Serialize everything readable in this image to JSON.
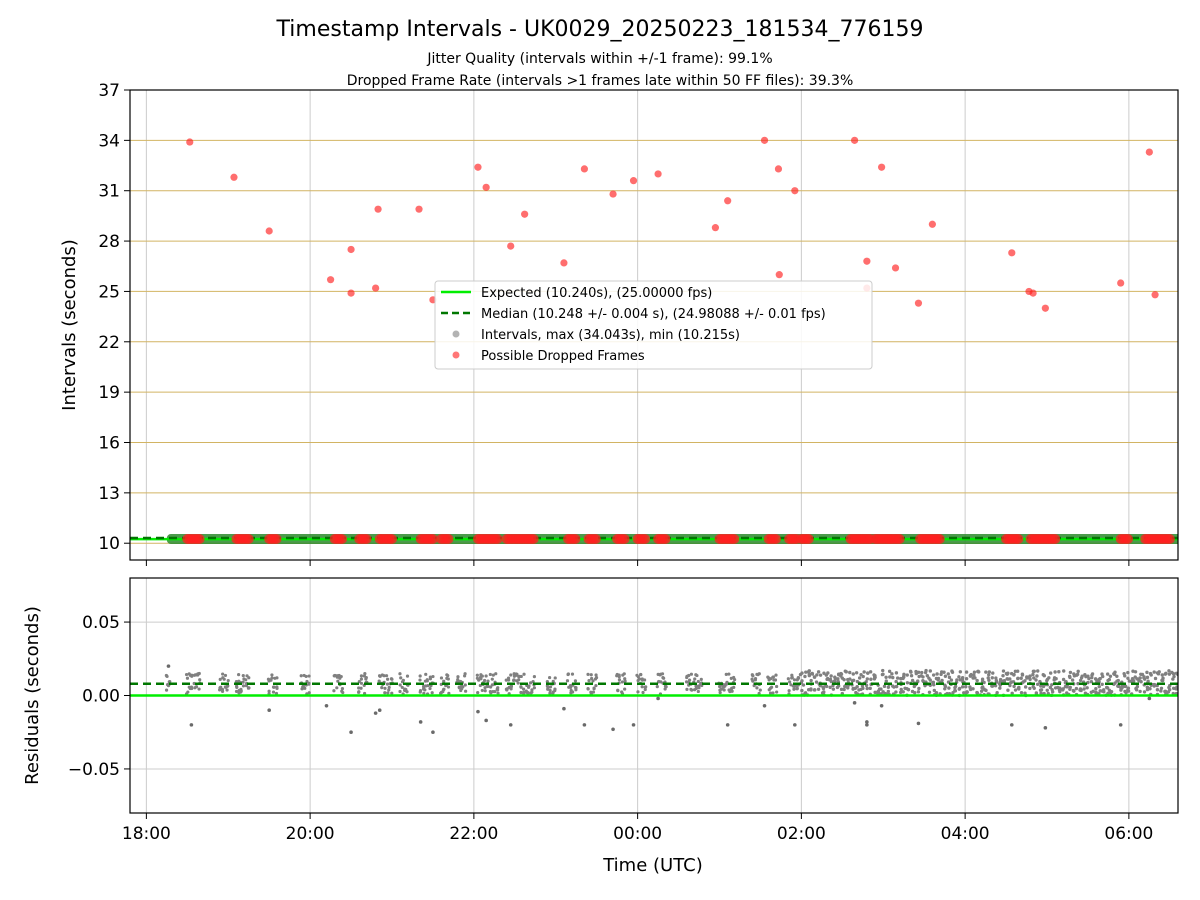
{
  "title": "Timestamp Intervals - UK0029_20250223_181534_776159",
  "subtitle_1": "Jitter Quality (intervals within +/-1 frame): 99.1%",
  "subtitle_2": "Dropped Frame Rate (intervals >1 frames late within 50 FF files): 39.3%",
  "colors": {
    "expected": "#00ee00",
    "median": "#007700",
    "intervals": "#808080",
    "dropped": "#ff2020",
    "hgrid_top": "#d2b463",
    "grid": "#cccccc"
  },
  "chart_data": [
    {
      "type": "scatter",
      "ylabel": "Intervals (seconds)",
      "xlabel": "",
      "x_unit": "hours since 18:00 UTC (2025-02-23)",
      "xlim": [
        -0.2,
        12.6
      ],
      "ylim": [
        9,
        37
      ],
      "yticks": [
        10,
        13,
        16,
        19,
        22,
        25,
        28,
        31,
        34,
        37
      ],
      "xticks": [
        0,
        2,
        4,
        6,
        8,
        10,
        12
      ],
      "xtick_labels": [],
      "grid": true,
      "legend": "center",
      "legend_entries": [
        {
          "kind": "line",
          "color": "#00ee00",
          "label": "Expected (10.240s), (25.00000 fps)"
        },
        {
          "kind": "dash",
          "color": "#007700",
          "label": "Median (10.248 +/- 0.004 s), (24.98088 +/- 0.01 fps)"
        },
        {
          "kind": "dot",
          "color": "#a0a0a0",
          "label": "Intervals, max (34.043s), min (10.215s)"
        },
        {
          "kind": "dot",
          "color": "#ff5555",
          "label": "Possible Dropped Frames"
        }
      ],
      "expected_value": 10.24,
      "median_value": 10.248,
      "interval_band": {
        "x_start": 0.25,
        "x_end": 12.6,
        "value": 10.25
      },
      "dropped_high": [
        [
          0.53,
          33.9
        ],
        [
          1.07,
          31.8
        ],
        [
          1.5,
          28.6
        ],
        [
          2.25,
          25.7
        ],
        [
          2.5,
          27.5
        ],
        [
          2.5,
          24.9
        ],
        [
          2.8,
          25.2
        ],
        [
          2.83,
          29.9
        ],
        [
          3.33,
          29.9
        ],
        [
          3.5,
          24.5
        ],
        [
          4.05,
          32.4
        ],
        [
          4.15,
          31.2
        ],
        [
          4.45,
          27.7
        ],
        [
          4.62,
          29.6
        ],
        [
          5.1,
          26.7
        ],
        [
          5.35,
          32.3
        ],
        [
          5.7,
          30.8
        ],
        [
          5.95,
          31.6
        ],
        [
          6.25,
          32.0
        ],
        [
          6.95,
          28.8
        ],
        [
          7.1,
          30.4
        ],
        [
          7.55,
          34.0
        ],
        [
          7.72,
          32.3
        ],
        [
          7.73,
          26.0
        ],
        [
          7.92,
          31.0
        ],
        [
          8.65,
          34.0
        ],
        [
          8.8,
          26.8
        ],
        [
          8.8,
          25.2
        ],
        [
          8.98,
          32.4
        ],
        [
          9.15,
          26.4
        ],
        [
          9.43,
          24.3
        ],
        [
          9.6,
          29.0
        ],
        [
          10.57,
          27.3
        ],
        [
          10.78,
          25.0
        ],
        [
          10.83,
          24.9
        ],
        [
          10.98,
          24.0
        ],
        [
          11.9,
          25.5
        ],
        [
          12.25,
          33.3
        ],
        [
          12.32,
          24.8
        ]
      ],
      "dropped_low_clusters": [
        [
          0.5,
          0.65
        ],
        [
          1.1,
          1.25
        ],
        [
          1.5,
          1.6
        ],
        [
          2.3,
          2.4
        ],
        [
          2.6,
          2.7
        ],
        [
          2.85,
          3.0
        ],
        [
          3.35,
          3.5
        ],
        [
          3.6,
          3.7
        ],
        [
          4.05,
          4.3
        ],
        [
          4.4,
          4.75
        ],
        [
          5.15,
          5.25
        ],
        [
          5.4,
          5.5
        ],
        [
          5.75,
          5.85
        ],
        [
          6.0,
          6.1
        ],
        [
          6.25,
          6.35
        ],
        [
          7.0,
          7.2
        ],
        [
          7.6,
          7.7
        ],
        [
          7.85,
          7.95
        ],
        [
          8.0,
          8.1
        ],
        [
          8.6,
          8.85
        ],
        [
          8.9,
          9.2
        ],
        [
          9.45,
          9.7
        ],
        [
          10.5,
          10.65
        ],
        [
          10.8,
          11.1
        ],
        [
          11.9,
          12.0
        ],
        [
          12.2,
          12.5
        ]
      ]
    },
    {
      "type": "scatter",
      "ylabel": "Residuals (seconds)",
      "xlabel": "Time (UTC)",
      "xlim": [
        -0.2,
        12.6
      ],
      "ylim": [
        -0.08,
        0.08
      ],
      "yticks": [
        -0.05,
        0.0,
        0.05
      ],
      "ytick_labels": [
        "−0.05",
        "0.00",
        "0.05"
      ],
      "xticks": [
        0,
        2,
        4,
        6,
        8,
        10,
        12
      ],
      "xtick_labels": [
        "18:00",
        "20:00",
        "22:00",
        "00:00",
        "02:00",
        "04:00",
        "06:00"
      ],
      "grid": true,
      "expected_residual": 0.0,
      "median_residual": 0.008,
      "sparse_until": 7.95,
      "dense_from": 7.95,
      "outliers": [
        [
          0.27,
          0.02
        ],
        [
          0.55,
          -0.02
        ],
        [
          1.5,
          -0.01
        ],
        [
          2.2,
          -0.007
        ],
        [
          2.5,
          -0.025
        ],
        [
          2.8,
          -0.012
        ],
        [
          2.85,
          -0.01
        ],
        [
          3.35,
          -0.018
        ],
        [
          3.5,
          -0.025
        ],
        [
          4.05,
          -0.011
        ],
        [
          4.15,
          -0.017
        ],
        [
          4.45,
          -0.02
        ],
        [
          5.1,
          -0.009
        ],
        [
          5.35,
          -0.02
        ],
        [
          5.7,
          -0.023
        ],
        [
          5.95,
          -0.02
        ],
        [
          6.25,
          -0.002
        ],
        [
          7.1,
          -0.02
        ],
        [
          7.55,
          -0.007
        ],
        [
          7.92,
          -0.02
        ],
        [
          8.65,
          -0.005
        ],
        [
          8.8,
          -0.02
        ],
        [
          8.8,
          -0.018
        ],
        [
          8.98,
          -0.007
        ],
        [
          9.43,
          -0.019
        ],
        [
          10.57,
          -0.02
        ],
        [
          10.98,
          -0.022
        ],
        [
          11.9,
          -0.02
        ],
        [
          12.25,
          -0.002
        ]
      ]
    }
  ]
}
